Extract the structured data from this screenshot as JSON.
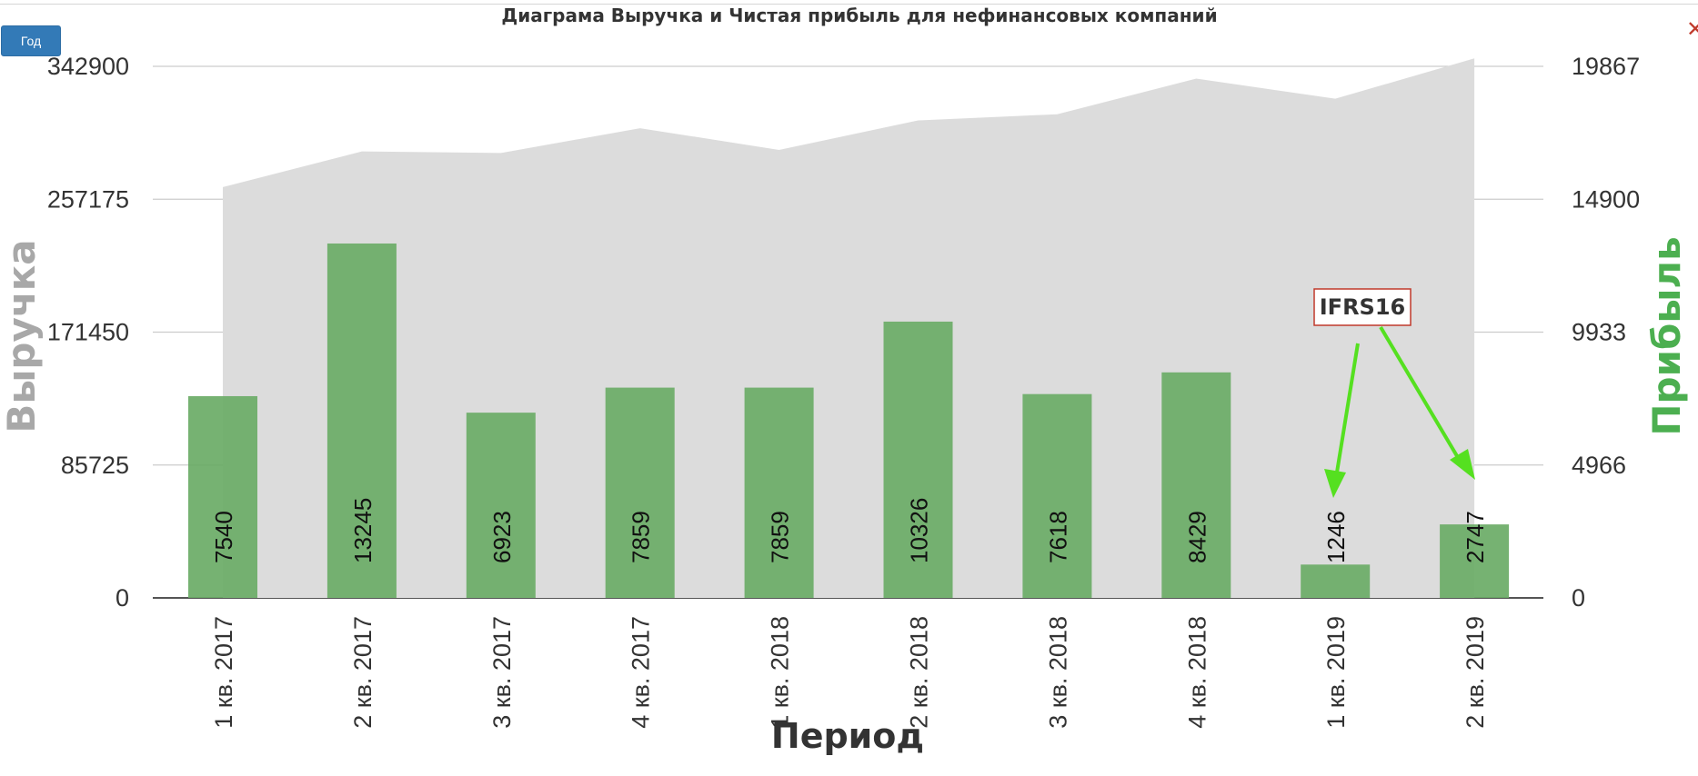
{
  "toolbar": {
    "year_button_label": "Год",
    "close_label": "✕"
  },
  "colors": {
    "revenue_fill": "#dcdcdc",
    "profit_bar": "#6aab66",
    "profit_axis": "#4caf50",
    "revenue_axis": "#a8a8a8",
    "arrow": "#55e020",
    "annotation_border": "#c0392b"
  },
  "chart_data": {
    "type": "bar",
    "title": "Диаграма Выручка и Чистая прибыль для нефинансовых компаний",
    "xlabel": "Период",
    "ylabel_left": "Выручка",
    "ylabel_right": "Прибыль",
    "categories": [
      "1 кв. 2017",
      "2 кв. 2017",
      "3 кв. 2017",
      "4 кв. 2017",
      "1 кв. 2018",
      "2 кв. 2018",
      "3 кв. 2018",
      "4 кв. 2018",
      "1 кв. 2019",
      "2 кв. 2019"
    ],
    "series": [
      {
        "name": "Выручка",
        "kind": "area",
        "axis": "left",
        "values": [
          265000,
          288000,
          287000,
          303000,
          289000,
          308000,
          312000,
          335000,
          322000,
          348000
        ]
      },
      {
        "name": "Прибыль",
        "kind": "bar",
        "axis": "right",
        "values": [
          7540,
          13245,
          6923,
          7859,
          7859,
          10326,
          7618,
          8429,
          1246,
          2747
        ]
      }
    ],
    "bar_labels": [
      "7540",
      "13245",
      "6923",
      "7859",
      "7859",
      "10326",
      "7618",
      "8429",
      "1246",
      "2747"
    ],
    "left_axis": {
      "ticks": [
        "0",
        "85725",
        "171450",
        "257175",
        "342900"
      ],
      "ylim": [
        0,
        342900
      ]
    },
    "right_axis": {
      "ticks": [
        "0",
        "4966",
        "9933",
        "14900",
        "19867"
      ],
      "ylim": [
        0,
        19867
      ]
    },
    "gridlines": true,
    "annotation": {
      "text": "IFRS16",
      "targets": [
        "1 кв. 2019",
        "2 кв. 2019"
      ]
    }
  }
}
